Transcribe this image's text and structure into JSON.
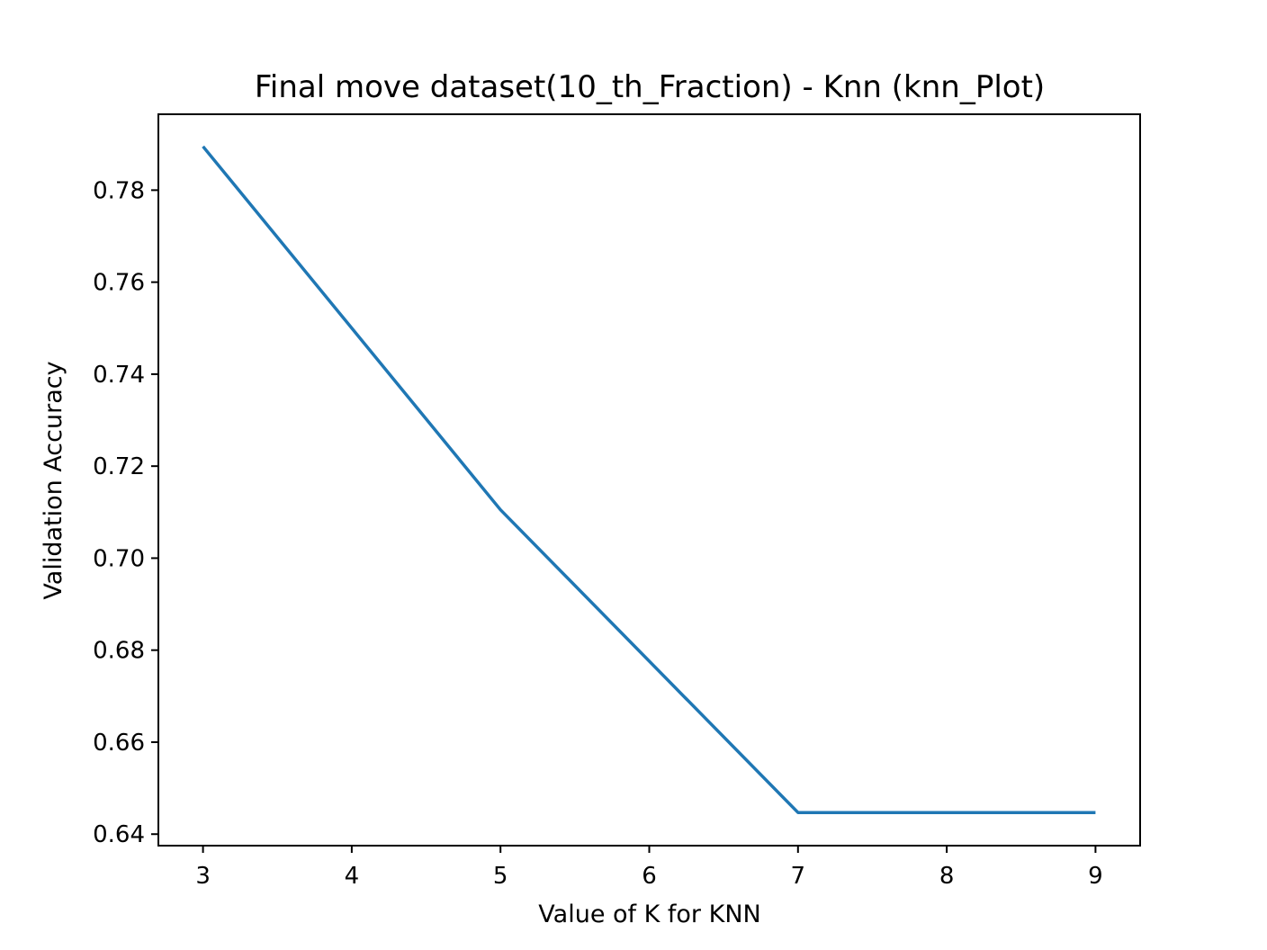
{
  "chart_data": {
    "type": "line",
    "title": "Final move dataset(10_th_Fraction) - Knn (knn_Plot)",
    "xlabel": "Value of K for KNN",
    "ylabel": "Validation Accuracy",
    "x": [
      3,
      5,
      7,
      9
    ],
    "series": [
      {
        "values": [
          0.7895,
          0.7105,
          0.6447,
          0.6447
        ],
        "color": "#1f77b4"
      }
    ],
    "xlim": [
      2.7,
      9.3
    ],
    "ylim": [
      0.6375,
      0.7965
    ],
    "xticks": [
      3,
      4,
      5,
      6,
      7,
      8,
      9
    ],
    "yticks": [
      0.64,
      0.66,
      0.68,
      0.7,
      0.72,
      0.74,
      0.76,
      0.78
    ],
    "ytick_labels": [
      "0.64",
      "0.66",
      "0.68",
      "0.70",
      "0.72",
      "0.74",
      "0.76",
      "0.78"
    ],
    "grid": false,
    "legend": "none"
  }
}
